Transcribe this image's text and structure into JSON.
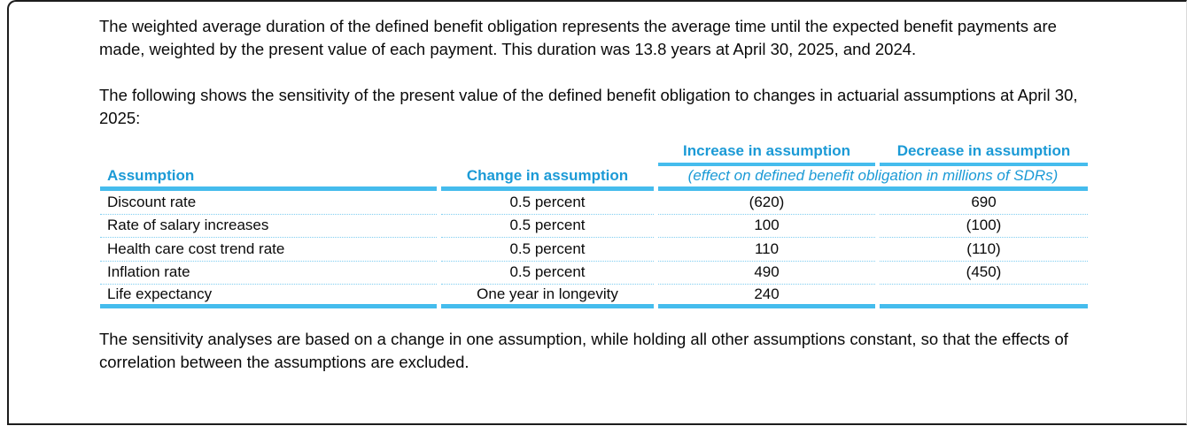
{
  "page": {
    "background": "#ffffff",
    "frame_border_color": "#1c1c1c"
  },
  "colors": {
    "accent_text_blue": "#1b9ad6",
    "accent_rule_blue": "#45bced",
    "dotted_separator_blue": "#7fcdf0",
    "body_text": "#0a0a0a"
  },
  "paragraphs": {
    "duration": "The weighted average duration of the defined benefit obligation represents the average time until the expected benefit payments are made, weighted by the present value of each payment. This duration was 13.8 years at April 30, 2025, and 2024.",
    "intro": "The following shows the sensitivity of the present value of the defined benefit obligation to changes in actuarial assumptions at April 30, 2025:",
    "note": "The sensitivity analyses are based on a change in one assumption, while holding all other assumptions constant, so that the effects of correlation between the assumptions are excluded."
  },
  "table": {
    "group_headers": {
      "increase": "Increase in assumption",
      "decrease": "Decrease in assumption"
    },
    "subheader": "(effect on defined benefit obligation in millions of SDRs)",
    "column_headers": {
      "assumption": "Assumption",
      "change": "Change in assumption"
    },
    "rows": [
      {
        "assumption": "Discount rate",
        "change": "0.5 percent",
        "increase": "(620)",
        "decrease": "690"
      },
      {
        "assumption": "Rate of salary increases",
        "change": "0.5 percent",
        "increase": "100",
        "decrease": "(100)"
      },
      {
        "assumption": "Health care cost trend rate",
        "change": "0.5 percent",
        "increase": "110",
        "decrease": "(110)"
      },
      {
        "assumption": "Inflation rate",
        "change": "0.5 percent",
        "increase": "490",
        "decrease": "(450)"
      },
      {
        "assumption": "Life expectancy",
        "change": "One year in longevity",
        "increase": "240",
        "decrease": ""
      }
    ]
  }
}
